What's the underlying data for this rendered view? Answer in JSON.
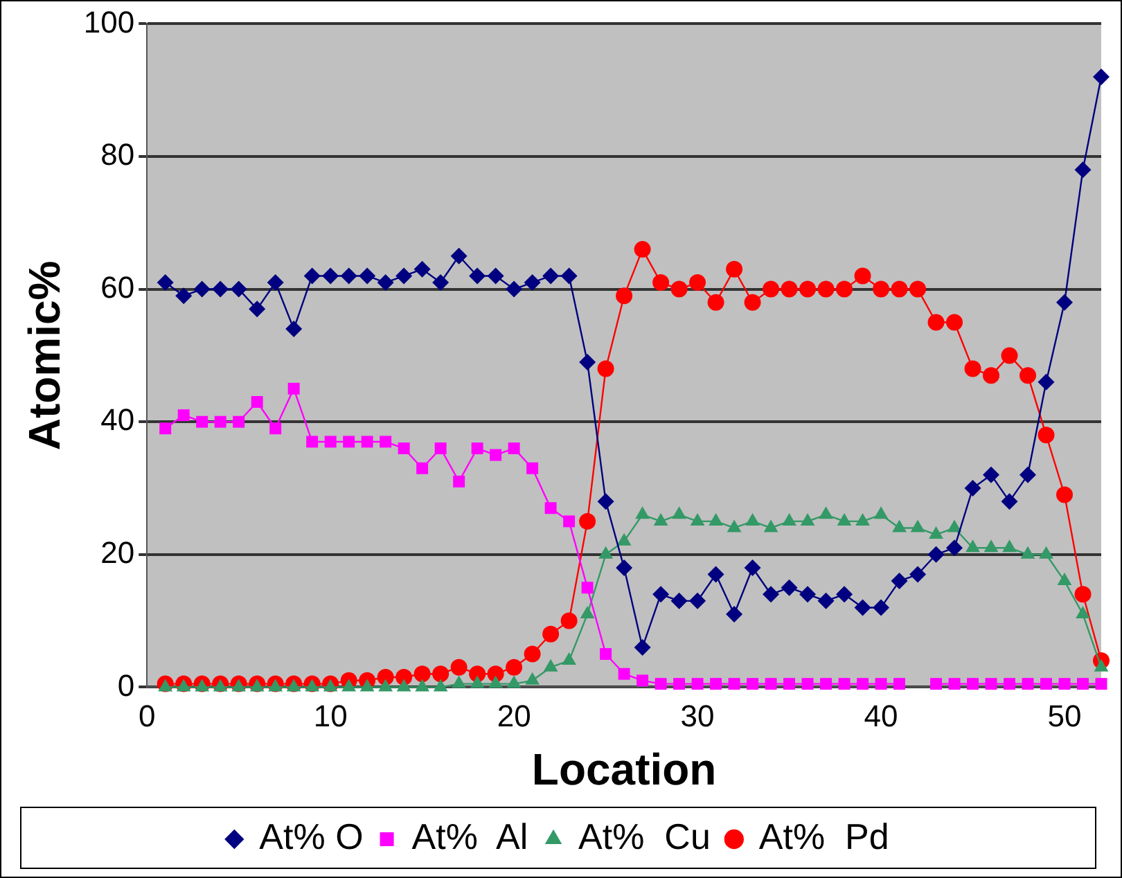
{
  "chart_data": {
    "type": "line",
    "xlabel": "Location",
    "ylabel": "Atomic%",
    "x": [
      1,
      2,
      3,
      4,
      5,
      6,
      7,
      8,
      9,
      10,
      11,
      12,
      13,
      14,
      15,
      16,
      17,
      18,
      19,
      20,
      21,
      22,
      23,
      24,
      25,
      26,
      27,
      28,
      29,
      30,
      31,
      32,
      33,
      34,
      35,
      36,
      37,
      38,
      39,
      40,
      41,
      42,
      43,
      44,
      45,
      46,
      47,
      48,
      49,
      50,
      51,
      52
    ],
    "series": [
      {
        "name": "At% O",
        "color": "#000080",
        "marker": "diamond",
        "values": [
          61,
          59,
          60,
          60,
          60,
          57,
          61,
          54,
          62,
          62,
          62,
          62,
          61,
          62,
          63,
          61,
          65,
          62,
          62,
          60,
          61,
          62,
          62,
          49,
          28,
          18,
          6,
          14,
          13,
          13,
          17,
          11,
          18,
          14,
          15,
          14,
          13,
          14,
          12,
          12,
          16,
          17,
          20,
          21,
          30,
          32,
          28,
          32,
          46,
          58,
          78,
          92
        ]
      },
      {
        "name": "At%  Al",
        "color": "#ff00ff",
        "marker": "square",
        "values": [
          39,
          41,
          40,
          40,
          40,
          43,
          39,
          45,
          37,
          37,
          37,
          37,
          37,
          36,
          33,
          36,
          31,
          36,
          35,
          36,
          33,
          27,
          25,
          15,
          5,
          2,
          1,
          0.5,
          0.5,
          0.5,
          0.5,
          0.5,
          0.5,
          0.5,
          0.5,
          0.5,
          0.5,
          0.5,
          0.5,
          0.5,
          0.5,
          null,
          0.5,
          0.5,
          0.5,
          0.5,
          0.5,
          0.5,
          0.5,
          0.5,
          0.5,
          0.5
        ]
      },
      {
        "name": "At%  Cu",
        "color": "#339966",
        "marker": "triangle",
        "values": [
          0,
          0,
          0,
          0,
          0,
          0,
          0,
          0,
          0,
          0,
          0,
          0,
          0,
          0,
          0,
          0,
          0.5,
          0.5,
          0.5,
          0.5,
          1,
          3,
          4,
          11,
          20,
          22,
          26,
          25,
          26,
          25,
          25,
          24,
          25,
          24,
          25,
          25,
          26,
          25,
          25,
          26,
          24,
          24,
          23,
          24,
          21,
          21,
          21,
          20,
          20,
          16,
          11,
          3
        ]
      },
      {
        "name": "At%  Pd",
        "color": "#ff0000",
        "marker": "circle",
        "values": [
          0.5,
          0.5,
          0.5,
          0.5,
          0.5,
          0.5,
          0.5,
          0.5,
          0.5,
          0.5,
          1,
          1,
          1.5,
          1.5,
          2,
          2,
          3,
          2,
          2,
          3,
          5,
          8,
          10,
          25,
          48,
          59,
          66,
          61,
          60,
          61,
          58,
          63,
          58,
          60,
          60,
          60,
          60,
          60,
          62,
          60,
          60,
          60,
          55,
          55,
          48,
          47,
          50,
          47,
          38,
          29,
          14,
          4
        ]
      }
    ],
    "xlim": [
      0,
      52
    ],
    "xticks": [
      0,
      10,
      20,
      30,
      40,
      50
    ],
    "ylim": [
      0,
      100
    ],
    "yticks": [
      0,
      20,
      40,
      60,
      80,
      100
    ],
    "grid": "y",
    "legend": "bottom"
  }
}
